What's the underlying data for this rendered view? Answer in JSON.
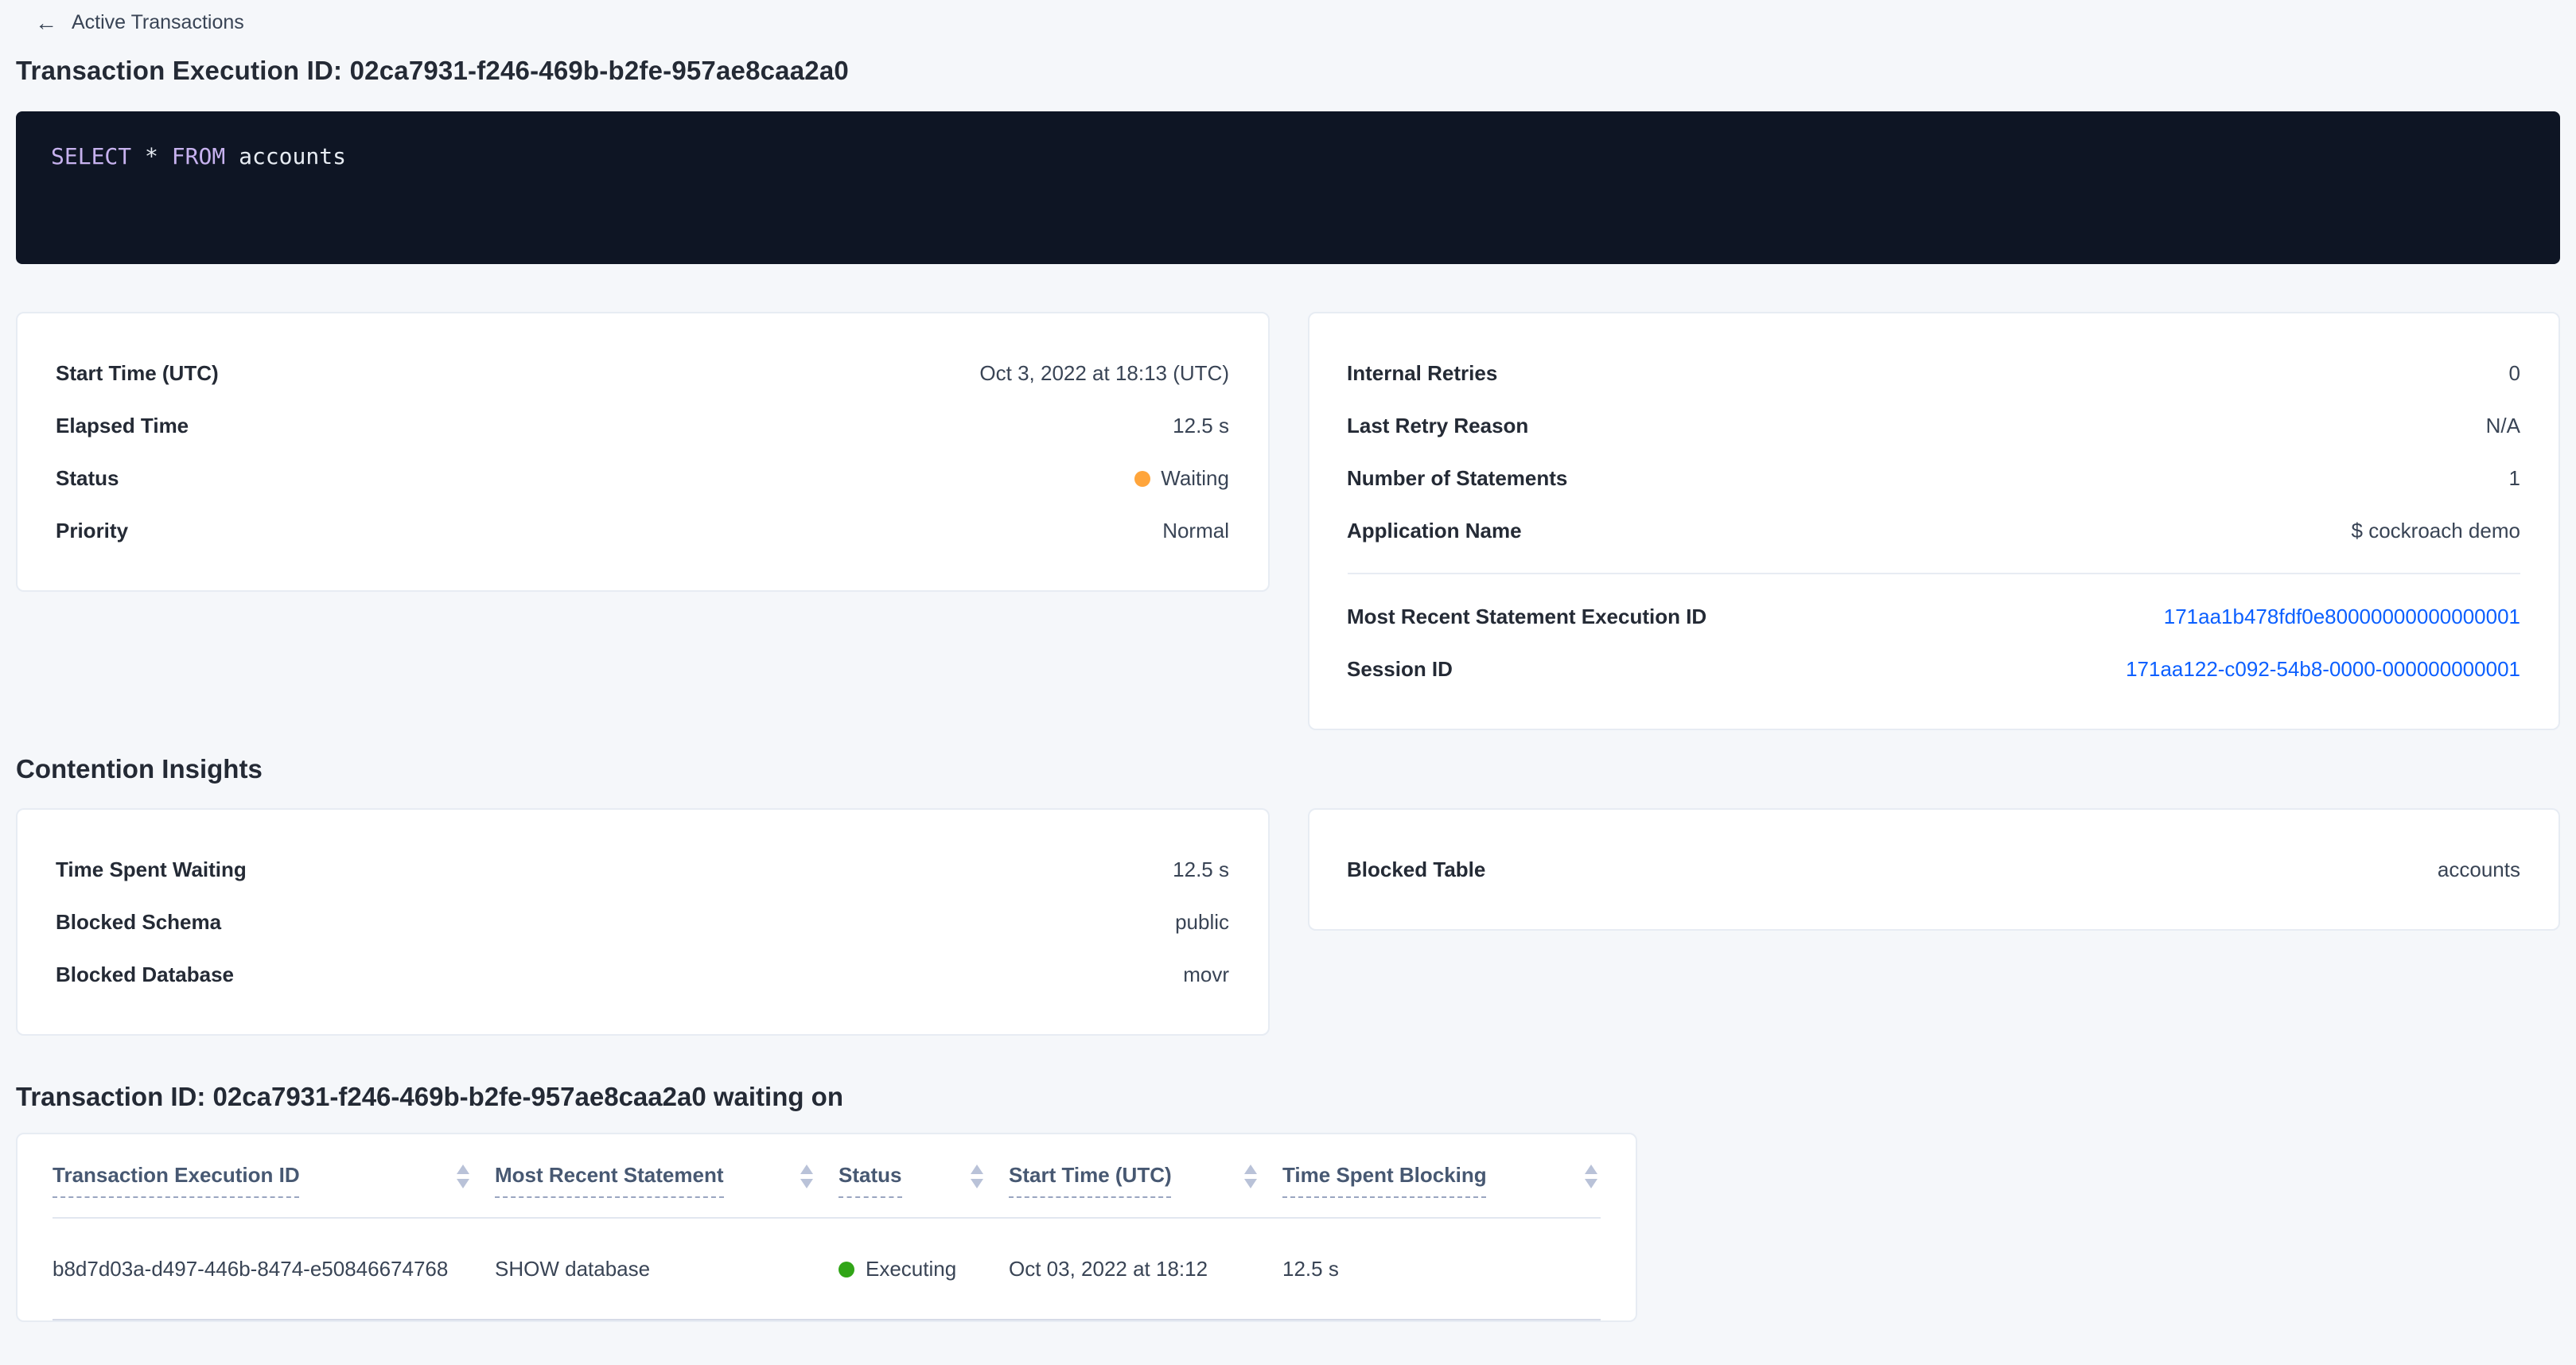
{
  "breadcrumb": {
    "back_icon": "←",
    "back_label": "Active Transactions"
  },
  "page_title": "Transaction Execution ID: 02ca7931-f246-469b-b2fe-957ae8caa2a0",
  "sql_editor": {
    "keyword_select": "SELECT",
    "star": "*",
    "keyword_from": "FROM",
    "table_name": "accounts"
  },
  "details_left": {
    "rows": [
      {
        "label": "Start Time (UTC)",
        "value": "Oct 3, 2022 at 18:13 (UTC)"
      },
      {
        "label": "Elapsed Time",
        "value": "12.5 s"
      },
      {
        "label": "Status",
        "value": "Waiting"
      },
      {
        "label": "Priority",
        "value": "Normal"
      }
    ]
  },
  "details_right": {
    "rows": [
      {
        "label": "Internal Retries",
        "value": "0"
      },
      {
        "label": "Last Retry Reason",
        "value": "N/A"
      },
      {
        "label": "Number of Statements",
        "value": "1"
      },
      {
        "label": "Application Name",
        "value": "$ cockroach demo"
      }
    ],
    "links": [
      {
        "label": "Most Recent Statement Execution ID",
        "value": "171aa1b478fdf0e80000000000000001"
      },
      {
        "label": "Session ID",
        "value": "171aa122-c092-54b8-0000-000000000001"
      }
    ]
  },
  "contention": {
    "heading": "Contention Insights",
    "left_rows": [
      {
        "label": "Time Spent Waiting",
        "value": "12.5 s"
      },
      {
        "label": "Blocked Schema",
        "value": "public"
      },
      {
        "label": "Blocked Database",
        "value": "movr"
      }
    ],
    "right_rows": [
      {
        "label": "Blocked Table",
        "value": "accounts"
      }
    ]
  },
  "waiting_table": {
    "heading": "Transaction ID: 02ca7931-f246-469b-b2fe-957ae8caa2a0 waiting on",
    "columns": [
      "Transaction Execution ID",
      "Most Recent Statement",
      "Status",
      "Start Time (UTC)",
      "Time Spent Blocking"
    ],
    "rows": [
      {
        "transaction_execution_id": "b8d7d03a-d497-446b-8474-e50846674768",
        "most_recent_statement": "SHOW database",
        "status": "Executing",
        "start_time": "Oct 03, 2022 at 18:12",
        "time_spent_blocking": "12.5 s"
      }
    ]
  },
  "status_icons": {
    "waiting": "orange-dot",
    "executing": "green-dot"
  },
  "colors": {
    "page_background": "#f5f7fa",
    "link_blue": "#0b5fff",
    "status_waiting_orange": "#ffa53b",
    "status_executing_green": "#31a517",
    "code_block_background": "#0e1524",
    "sql_keyword_purple": "#c7b2ef",
    "heading_text": "#242a35"
  }
}
